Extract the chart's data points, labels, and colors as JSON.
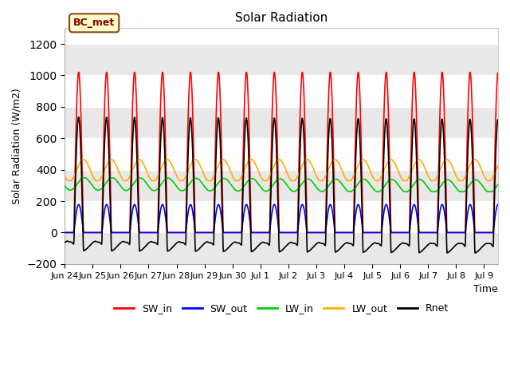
{
  "title": "Solar Radiation",
  "ylabel": "Solar Radiation (W/m2)",
  "xlabel": "Time",
  "ylim": [
    -200,
    1300
  ],
  "yticks": [
    -200,
    0,
    200,
    400,
    600,
    800,
    1000,
    1200
  ],
  "annotation": "BC_met",
  "colors": {
    "SW_in": "#ff0000",
    "SW_out": "#0000ff",
    "LW_in": "#00cc00",
    "LW_out": "#ffaa00",
    "Rnet": "#000000"
  },
  "x_tick_labels": [
    "Jun 24",
    "Jun 25",
    "Jun 26",
    "Jun 27",
    "Jun 28",
    "Jun 29",
    "Jun 30",
    "Jul 1",
    "Jul 2",
    "Jul 3",
    "Jul 4",
    "Jul 5",
    "Jul 6",
    "Jul 7",
    "Jul 8",
    "Jul 9"
  ],
  "band_colors": [
    "#e8e8e8",
    "#ffffff"
  ],
  "SW_in_peak": 1020,
  "LW_in_base": 310,
  "LW_in_amp": 40,
  "LW_out_base": 395,
  "LW_out_amp": 70
}
